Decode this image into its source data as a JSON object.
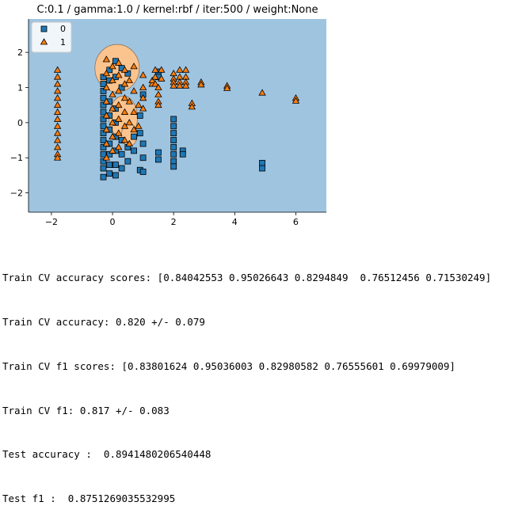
{
  "chart_data": {
    "type": "scatter",
    "title": "C:0.1 / gamma:1.0 / kernel:rbf / iter:500 / weight:None",
    "xlabel": "",
    "ylabel": "",
    "xlim": [
      -2.75,
      7.0
    ],
    "ylim": [
      -2.55,
      2.95
    ],
    "xticks": [
      -2,
      0,
      2,
      4,
      6
    ],
    "yticks": [
      -2,
      -1,
      0,
      1,
      2
    ],
    "grid": false,
    "legend_position": "top-left",
    "region_colors": {
      "class_0": "#9fc4e0",
      "class_1": "#fbc48f"
    },
    "series": [
      {
        "name": "0",
        "marker": "square",
        "color": "#1f77b4",
        "points": [
          [
            -0.3,
            1.3
          ],
          [
            -0.3,
            1.1
          ],
          [
            -0.3,
            0.9
          ],
          [
            -0.3,
            0.7
          ],
          [
            -0.3,
            0.5
          ],
          [
            -0.3,
            0.3
          ],
          [
            -0.3,
            0.1
          ],
          [
            -0.3,
            -0.1
          ],
          [
            -0.3,
            -0.3
          ],
          [
            -0.3,
            -0.5
          ],
          [
            -0.3,
            -0.7
          ],
          [
            -0.3,
            -0.9
          ],
          [
            -0.3,
            -1.1
          ],
          [
            -0.3,
            -1.3
          ],
          [
            -0.3,
            -1.55
          ],
          [
            -0.1,
            1.5
          ],
          [
            -0.1,
            1.2
          ],
          [
            -0.1,
            0.6
          ],
          [
            -0.1,
            0.2
          ],
          [
            -0.1,
            -0.2
          ],
          [
            -0.1,
            -0.6
          ],
          [
            -0.1,
            -0.9
          ],
          [
            -0.1,
            -1.2
          ],
          [
            -0.1,
            -1.45
          ],
          [
            0.1,
            1.75
          ],
          [
            0.1,
            1.3
          ],
          [
            0.1,
            0.4
          ],
          [
            0.1,
            0.0
          ],
          [
            0.1,
            -0.4
          ],
          [
            0.1,
            -0.8
          ],
          [
            0.1,
            -1.2
          ],
          [
            0.1,
            -1.5
          ],
          [
            0.3,
            1.55
          ],
          [
            0.3,
            1.0
          ],
          [
            0.3,
            -0.5
          ],
          [
            0.3,
            -0.9
          ],
          [
            0.3,
            -1.3
          ],
          [
            0.5,
            1.4
          ],
          [
            0.5,
            -0.7
          ],
          [
            0.5,
            -1.1
          ],
          [
            0.7,
            -0.4
          ],
          [
            0.7,
            -0.8
          ],
          [
            0.9,
            0.2
          ],
          [
            0.9,
            -0.3
          ],
          [
            0.9,
            -1.35
          ],
          [
            1.0,
            0.8
          ],
          [
            1.0,
            -0.6
          ],
          [
            1.0,
            -1.0
          ],
          [
            1.0,
            -1.4
          ],
          [
            1.5,
            1.45
          ],
          [
            1.5,
            1.3
          ],
          [
            1.5,
            -0.85
          ],
          [
            1.5,
            -1.05
          ],
          [
            2.0,
            0.1
          ],
          [
            2.0,
            -0.1
          ],
          [
            2.0,
            -0.3
          ],
          [
            2.0,
            -0.5
          ],
          [
            2.0,
            -0.7
          ],
          [
            2.0,
            -0.9
          ],
          [
            2.0,
            -1.1
          ],
          [
            2.0,
            -1.25
          ],
          [
            2.3,
            -0.8
          ],
          [
            2.3,
            -0.9
          ],
          [
            4.9,
            -1.15
          ],
          [
            4.9,
            -1.3
          ]
        ]
      },
      {
        "name": "1",
        "marker": "triangle",
        "color": "#ff7f0e",
        "points": [
          [
            -1.8,
            1.5
          ],
          [
            -1.8,
            1.3
          ],
          [
            -1.8,
            1.1
          ],
          [
            -1.8,
            0.9
          ],
          [
            -1.8,
            0.7
          ],
          [
            -1.8,
            0.5
          ],
          [
            -1.8,
            0.3
          ],
          [
            -1.8,
            0.1
          ],
          [
            -1.8,
            -0.1
          ],
          [
            -1.8,
            -0.3
          ],
          [
            -1.8,
            -0.5
          ],
          [
            -1.8,
            -0.7
          ],
          [
            -1.8,
            -0.9
          ],
          [
            -1.8,
            -1.0
          ],
          [
            -0.2,
            1.8
          ],
          [
            -0.2,
            1.4
          ],
          [
            -0.2,
            1.0
          ],
          [
            -0.2,
            0.6
          ],
          [
            -0.2,
            0.2
          ],
          [
            -0.2,
            -0.2
          ],
          [
            -0.2,
            -0.6
          ],
          [
            -0.2,
            -1.0
          ],
          [
            0.0,
            1.6
          ],
          [
            0.0,
            1.2
          ],
          [
            0.0,
            0.8
          ],
          [
            0.0,
            0.4
          ],
          [
            0.0,
            0.0
          ],
          [
            0.0,
            -0.4
          ],
          [
            0.0,
            -0.8
          ],
          [
            0.2,
            1.7
          ],
          [
            0.2,
            1.35
          ],
          [
            0.2,
            0.9
          ],
          [
            0.2,
            0.5
          ],
          [
            0.2,
            0.1
          ],
          [
            0.2,
            -0.3
          ],
          [
            0.2,
            -0.7
          ],
          [
            0.4,
            1.5
          ],
          [
            0.4,
            1.1
          ],
          [
            0.4,
            0.7
          ],
          [
            0.4,
            0.3
          ],
          [
            0.4,
            -0.1
          ],
          [
            0.4,
            -0.5
          ],
          [
            0.55,
            1.2
          ],
          [
            0.55,
            0.6
          ],
          [
            0.55,
            0.0
          ],
          [
            0.55,
            -0.6
          ],
          [
            0.7,
            1.6
          ],
          [
            0.7,
            0.9
          ],
          [
            0.7,
            0.3
          ],
          [
            0.7,
            -0.2
          ],
          [
            0.85,
            0.5
          ],
          [
            0.85,
            -0.1
          ],
          [
            1.0,
            1.35
          ],
          [
            1.0,
            1.0
          ],
          [
            1.0,
            0.7
          ],
          [
            1.0,
            0.4
          ],
          [
            1.3,
            1.1
          ],
          [
            1.3,
            1.2
          ],
          [
            1.4,
            1.5
          ],
          [
            1.4,
            1.3
          ],
          [
            1.4,
            1.1
          ],
          [
            1.5,
            1.0
          ],
          [
            1.5,
            0.8
          ],
          [
            1.5,
            0.6
          ],
          [
            1.5,
            0.5
          ],
          [
            1.6,
            1.5
          ],
          [
            1.6,
            1.25
          ],
          [
            2.0,
            1.4
          ],
          [
            2.0,
            1.25
          ],
          [
            2.0,
            1.15
          ],
          [
            2.0,
            1.05
          ],
          [
            2.2,
            1.5
          ],
          [
            2.2,
            1.3
          ],
          [
            2.2,
            1.15
          ],
          [
            2.2,
            1.05
          ],
          [
            2.4,
            1.5
          ],
          [
            2.4,
            1.3
          ],
          [
            2.4,
            1.15
          ],
          [
            2.4,
            1.05
          ],
          [
            2.6,
            0.55
          ],
          [
            2.6,
            0.45
          ],
          [
            2.9,
            1.15
          ],
          [
            2.9,
            1.08
          ],
          [
            3.75,
            1.05
          ],
          [
            3.75,
            0.98
          ],
          [
            4.9,
            0.85
          ],
          [
            6.0,
            0.7
          ],
          [
            6.0,
            0.62
          ]
        ]
      }
    ]
  },
  "output": {
    "line1": "Train CV accuracy scores: [0.84042553 0.95026643 0.8294849  0.76512456 0.71530249]",
    "line2": "Train CV accuracy: 0.820 +/- 0.079",
    "line3": "Train CV f1 scores: [0.83801624 0.95036003 0.82980582 0.76555601 0.69979009]",
    "line4": "Train CV f1: 0.817 +/- 0.083",
    "line5": "Test accuracy :  0.8941480206540448",
    "line6": "Test f1 :  0.8751269035532995"
  }
}
